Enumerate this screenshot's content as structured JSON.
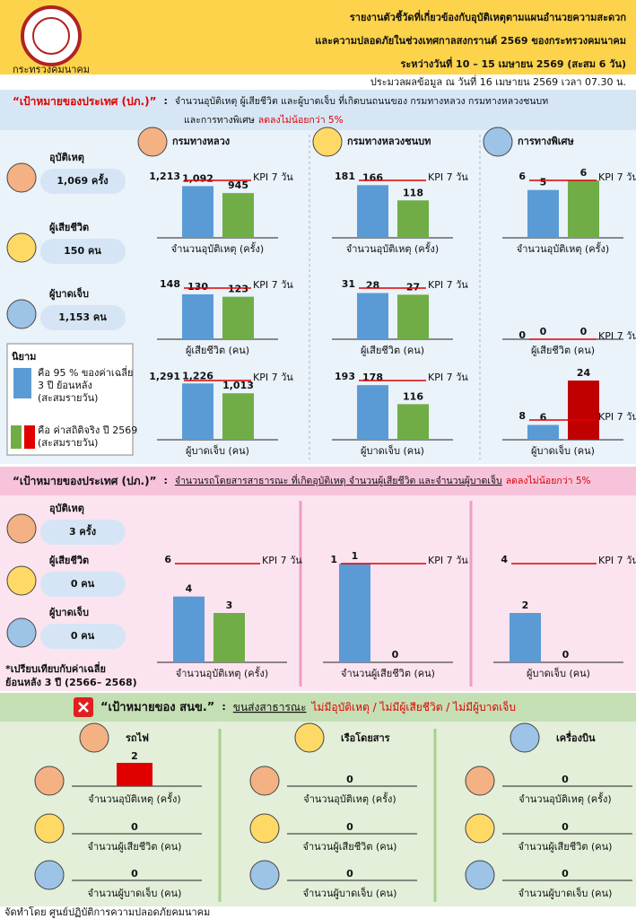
{
  "header": {
    "logo_text": "กระทรวงคมนาคม",
    "title_lines": [
      "รายงานตัวชี้วัดที่เกี่ยวข้องกับอุบัติเหตุตามแผนอำนวยความสะดวก",
      "และความปลอดภัยในช่วงเทศกาลสงกรานต์ 2569 ของกระทรวงคมนาคม",
      "ระหว่างวันที่ 10 – 15 เมษายน 2569 (สะสม 6 วัน)"
    ],
    "note": "ประมวลผลข้อมูล ณ วันที่ 16 เมษายน 2569 เวลา 07.30 น."
  },
  "colors": {
    "baseline": "#5b9bd5",
    "actual": "#70ad47",
    "kpi": "#e00000"
  },
  "kpi_text": "KPI 7 วัน",
  "section1": {
    "goal_label": "“เป้าหมายของประเทศ (ปภ.)”",
    "colon": ":",
    "goal_text": "จำนวนอุบัติเหตุ ผู้เสียชีวิต และผู้บาดเจ็บ ที่เกิดบนถนนของ กรมทางหลวง กรมทางหลวงชนบท",
    "goal_text2": "และการทางพิเศษ",
    "goal_highlight": "ลดลงไม่น้อยกว่า 5%",
    "summary": [
      {
        "label": "อุบัติเหตุ",
        "value": "1,069 ครั้ง"
      },
      {
        "label": "ผู้เสียชีวิต",
        "value": "150 คน"
      },
      {
        "label": "ผู้บาดเจ็บ",
        "value": "1,153 คน"
      }
    ],
    "legend": {
      "title": "นิยาม",
      "baseline": [
        "คือ 95 % ของค่าเฉลี่ย",
        "3 ปี ย้อนหลัง",
        "(สะสมรายวัน)"
      ],
      "actual": [
        "คือ ค่าสถิติจริง ปี 2569",
        "(สะสมรายวัน)"
      ],
      "alert_color": "#e00000"
    },
    "panels": [
      {
        "agency": "กรมทางหลวง",
        "charts": [
          {
            "label": "จำนวนอุบัติเหตุ (ครั้ง)",
            "kpi": 1213,
            "kpi_label": "1,213",
            "values": [
              1092,
              945
            ],
            "value_labels": [
              "1,092",
              "945"
            ]
          },
          {
            "label": "ผู้เสียชีวิต (คน)",
            "kpi": 148,
            "values": [
              130,
              123
            ]
          },
          {
            "label": "ผู้บาดเจ็บ (คน)",
            "kpi": 1291,
            "kpi_label": "1,291",
            "values": [
              1226,
              1013
            ],
            "value_labels": [
              "1,226",
              "1,013"
            ]
          }
        ]
      },
      {
        "agency": "กรมทางหลวงชนบท",
        "charts": [
          {
            "label": "จำนวนอุบัติเหตุ (ครั้ง)",
            "kpi": 181,
            "values": [
              166,
              118
            ]
          },
          {
            "label": "ผู้เสียชีวิต (คน)",
            "kpi": 31,
            "values": [
              28,
              27
            ]
          },
          {
            "label": "ผู้บาดเจ็บ (คน)",
            "kpi": 193,
            "values": [
              178,
              116
            ]
          }
        ]
      },
      {
        "agency": "การทางพิเศษ",
        "charts": [
          {
            "label": "จำนวนอุบัติเหตุ (ครั้ง)",
            "kpi": 6,
            "values": [
              5,
              6
            ]
          },
          {
            "label": "ผู้เสียชีวิต (คน)",
            "kpi": 0,
            "values": [
              0,
              0
            ]
          },
          {
            "label": "ผู้บาดเจ็บ (คน)",
            "kpi": 8,
            "values": [
              6,
              24
            ],
            "actual_color": "#c00000"
          }
        ]
      }
    ]
  },
  "section2": {
    "goal_label": "“เป้าหมายของประเทศ (ปภ.)”",
    "colon": ":",
    "goal_text": "จำนวนรถโดยสารสาธารณะ ที่เกิดอุบัติเหตุ จำนวนผู้เสียชีวิต และจำนวนผู้บาดเจ็บ",
    "goal_highlight": "ลดลงไม่น้อยกว่า 5%",
    "summary": [
      {
        "label": "อุบัติเหตุ",
        "value": "3 ครั้ง"
      },
      {
        "label": "ผู้เสียชีวิต",
        "value": "0 คน"
      },
      {
        "label": "ผู้บาดเจ็บ",
        "value": "0 คน"
      }
    ],
    "note": [
      "*เปรียบเทียบกับค่าเฉลี่ย",
      "ย้อนหลัง 3 ปี (2566– 2568)"
    ],
    "charts": [
      {
        "label": "จำนวนอุบัติเหตุ (ครั้ง)",
        "kpi": 6,
        "values": [
          4,
          3
        ]
      },
      {
        "label": "จำนวนผู้เสียชีวิต (คน)",
        "kpi": 1,
        "values": [
          1,
          0
        ]
      },
      {
        "label": "ผู้บาดเจ็บ (คน)",
        "kpi": 4,
        "values": [
          2,
          0
        ]
      }
    ]
  },
  "section3": {
    "goal_label": "“เป้าหมายของ สนข.”",
    "colon": ":",
    "goal_prefix": "ขนส่งสาธารณะ",
    "goal_highlight": "ไม่มีอุบัติเหตุ / ไม่มีผู้เสียชีวิต / ไม่มีผู้บาดเจ็บ",
    "bar_color": "#e00000",
    "row_labels": [
      "จำนวนอุบัติเหตุ (ครั้ง)",
      "จำนวนผู้เสียชีวิต (คน)",
      "จำนวนผู้บาดเจ็บ (คน)"
    ],
    "modes": [
      {
        "name": "รถไฟ",
        "values": [
          2,
          0,
          0
        ]
      },
      {
        "name": "เรือโดยสาร",
        "values": [
          0,
          0,
          0
        ]
      },
      {
        "name": "เครื่องบิน",
        "values": [
          0,
          0,
          0
        ]
      }
    ]
  },
  "footer": "จัดทำโดย ศูนย์ปฏิบัติการความปลอดภัยคมนาคม"
}
